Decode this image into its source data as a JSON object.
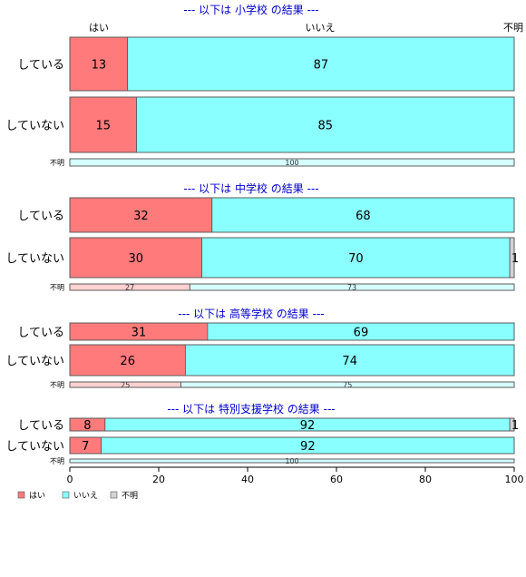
{
  "chart_data": {
    "type": "bar",
    "orientation": "horizontal-stacked",
    "categories": [
      "はい",
      "いいえ",
      "不明"
    ],
    "colors": {
      "はい": "#ff7b7b",
      "いいえ": "#89ffff",
      "不明": "#d3d3d3"
    },
    "xlim": [
      0,
      100
    ],
    "xticks": [
      "0",
      "20",
      "40",
      "60",
      "80",
      "100"
    ],
    "legend": {
      "position": "bottom-left",
      "entries": [
        "はい",
        "いいえ",
        "不明"
      ]
    },
    "top_category_labels": [
      "はい",
      "いいえ",
      "不明"
    ],
    "panels": [
      {
        "title": "--- 以下は 小学校 の結果 ---",
        "rows": [
          {
            "label": "している",
            "values": [
              13,
              87,
              0
            ],
            "labels": [
              "13",
              "87",
              ""
            ]
          },
          {
            "label": "していない",
            "values": [
              15,
              85,
              0
            ],
            "labels": [
              "15",
              "85",
              ""
            ]
          },
          {
            "label": "不明",
            "values": [
              0,
              100,
              0
            ],
            "labels": [
              "",
              "100",
              ""
            ],
            "minor": true
          }
        ]
      },
      {
        "title": "--- 以下は 中学校 の結果 ---",
        "rows": [
          {
            "label": "している",
            "values": [
              32,
              68,
              0
            ],
            "labels": [
              "32",
              "68",
              ""
            ]
          },
          {
            "label": "していない",
            "values": [
              30,
              70,
              1
            ],
            "labels": [
              "30",
              "70",
              "1"
            ]
          },
          {
            "label": "不明",
            "values": [
              27,
              73,
              0
            ],
            "labels": [
              "27",
              "73",
              ""
            ],
            "minor": true
          }
        ]
      },
      {
        "title": "--- 以下は 高等学校 の結果 ---",
        "rows": [
          {
            "label": "している",
            "values": [
              31,
              69,
              0
            ],
            "labels": [
              "31",
              "69",
              ""
            ]
          },
          {
            "label": "していない",
            "values": [
              26,
              74,
              0
            ],
            "labels": [
              "26",
              "74",
              ""
            ]
          },
          {
            "label": "不明",
            "values": [
              25,
              75,
              0
            ],
            "labels": [
              "25",
              "75",
              ""
            ],
            "minor": true
          }
        ]
      },
      {
        "title": "--- 以下は 特別支援学校 の結果 ---",
        "rows": [
          {
            "label": "している",
            "values": [
              8,
              92,
              1
            ],
            "labels": [
              "8",
              "92",
              "1"
            ]
          },
          {
            "label": "していない",
            "values": [
              7,
              92,
              0
            ],
            "labels": [
              "7",
              "92",
              ""
            ]
          },
          {
            "label": "不明",
            "values": [
              0,
              100,
              0
            ],
            "labels": [
              "",
              "100",
              ""
            ],
            "minor": true
          }
        ]
      }
    ]
  }
}
